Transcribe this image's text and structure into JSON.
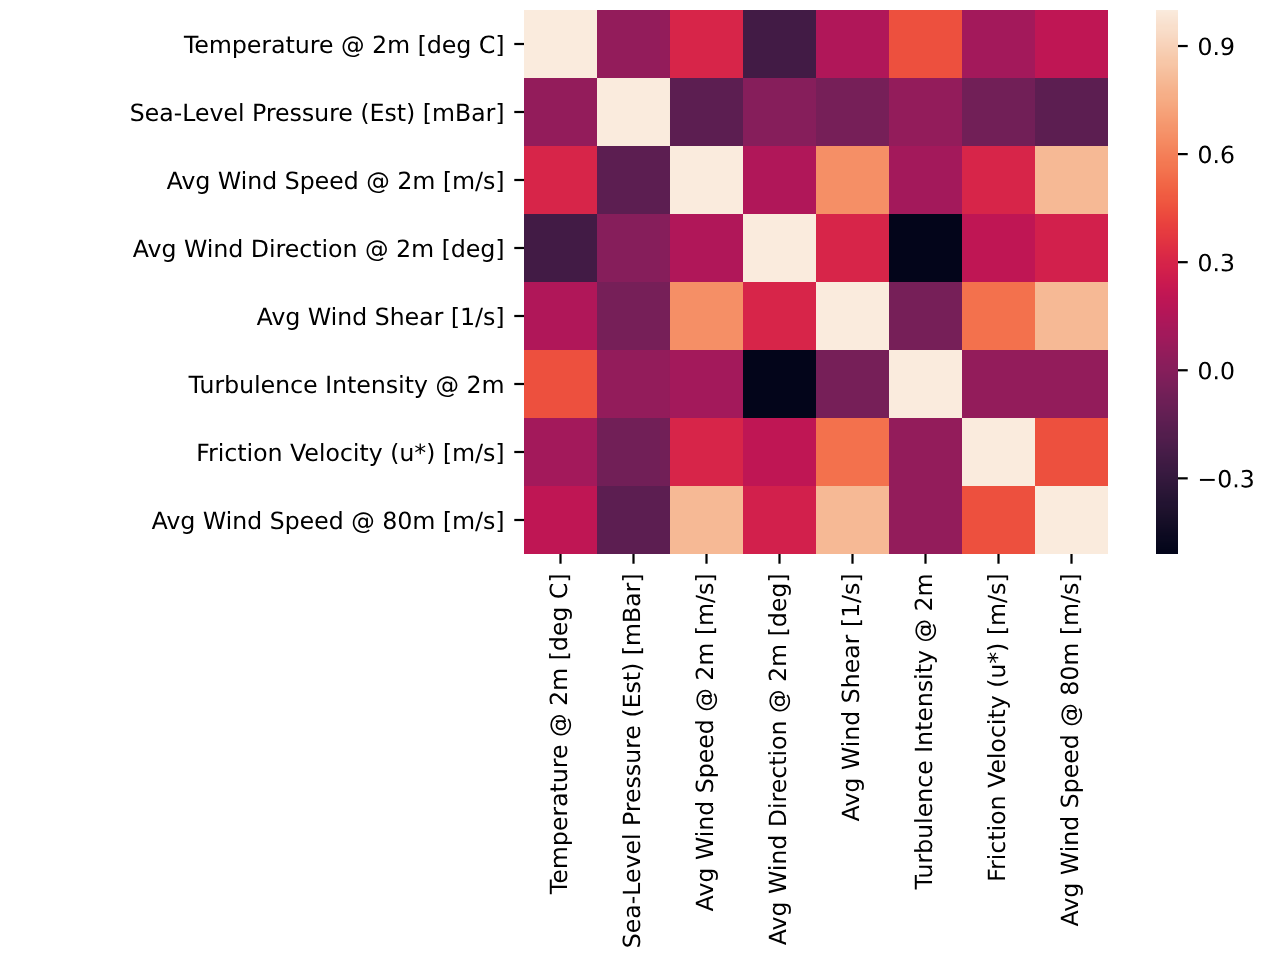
{
  "chart_data": {
    "type": "heatmap",
    "categories": [
      "Temperature @ 2m [deg C]",
      "Sea-Level Pressure (Est) [mBar]",
      "Avg Wind Speed @ 2m [m/s]",
      "Avg Wind Direction @ 2m [deg]",
      "Avg Wind Shear [1/s]",
      "Turbulence Intensity @ 2m",
      "Friction Velocity (u*) [m/s]",
      "Avg Wind Speed @ 80m [m/s]"
    ],
    "y_categories": [
      "Temperature @ 2m [deg C]",
      "Sea-Level Pressure (Est) [mBar]",
      "Avg Wind Speed @ 2m [m/s]",
      "Avg Wind Direction @ 2m [deg]",
      "Avg Wind Shear [1/s]",
      "Turbulence Intensity @ 2m",
      "Friction Velocity (u*) [m/s]",
      "Avg Wind Speed @ 80m [m/s]"
    ],
    "cells": [
      [
        1.0,
        0.05,
        0.3,
        -0.25,
        0.15,
        0.45,
        0.1,
        0.2
      ],
      [
        0.05,
        1.0,
        -0.15,
        0.0,
        -0.05,
        0.05,
        -0.07,
        -0.15
      ],
      [
        0.3,
        -0.15,
        1.0,
        0.15,
        0.65,
        0.1,
        0.3,
        0.8
      ],
      [
        -0.25,
        0.0,
        0.15,
        1.0,
        0.3,
        -0.51,
        0.2,
        0.28
      ],
      [
        0.15,
        -0.05,
        0.65,
        0.3,
        1.0,
        -0.05,
        0.55,
        0.8
      ],
      [
        0.45,
        0.05,
        0.1,
        -0.51,
        -0.05,
        1.0,
        0.05,
        0.05
      ],
      [
        0.1,
        -0.07,
        0.3,
        0.2,
        0.55,
        0.05,
        1.0,
        0.45
      ],
      [
        0.2,
        -0.15,
        0.8,
        0.28,
        0.8,
        0.05,
        0.45,
        1.0
      ]
    ],
    "clim": [
      -0.51,
      1.0
    ],
    "cticks": [
      0.9,
      0.6,
      0.3,
      {
        "value": 0,
        "label": "0.0"
      },
      {
        "value": -0.3,
        "label": "−0.3"
      }
    ]
  }
}
